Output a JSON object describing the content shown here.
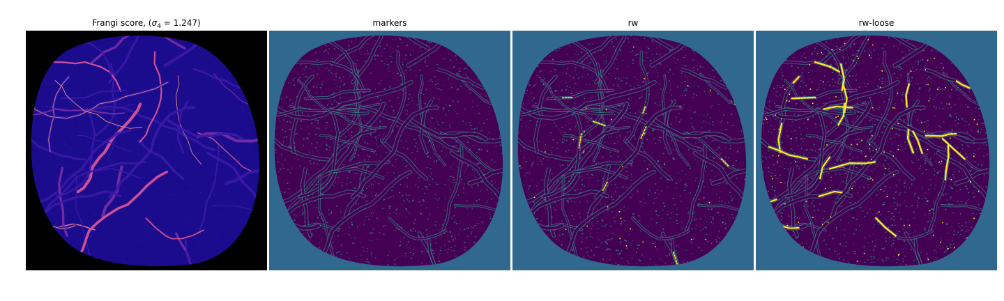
{
  "figure": {
    "panels": [
      {
        "title_prefix": "Frangi score, (",
        "title_sigma": "σ",
        "title_sub": "4",
        "title_suffix": " = 1.247)",
        "colormap": "plasma-on-black",
        "background_color": "#000000",
        "tissue_color": "#1a0c8c",
        "vessel_colors": [
          "#3b1aa8",
          "#7b2ea8",
          "#e0569a",
          "#f5a07a"
        ]
      },
      {
        "title": "markers",
        "colormap": "viridis",
        "background_color": "#31688e",
        "tissue_color": "#440154",
        "marker_color": "#35b79a"
      },
      {
        "title": "rw",
        "colormap": "viridis",
        "background_color": "#31688e",
        "tissue_color": "#440154",
        "marker_color": "#35b79a",
        "highlight_color": "#fde725"
      },
      {
        "title": "rw-loose",
        "colormap": "viridis",
        "background_color": "#31688e",
        "tissue_color": "#440154",
        "marker_color": "#35b79a",
        "highlight_color": "#fde725"
      }
    ]
  }
}
